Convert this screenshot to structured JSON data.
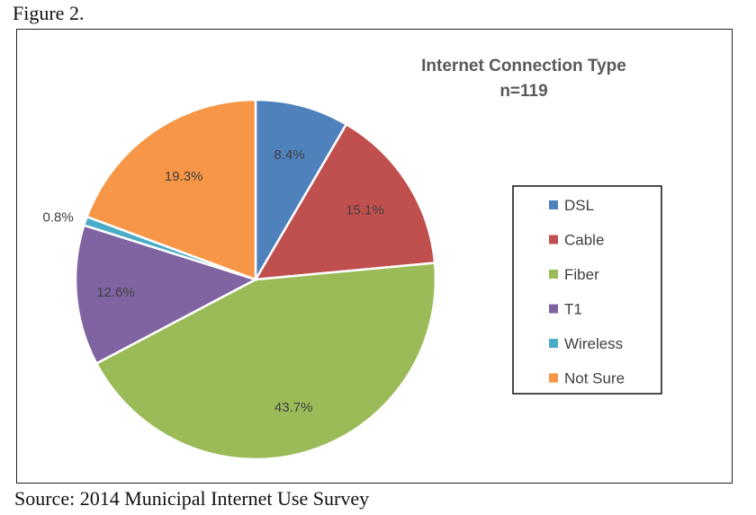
{
  "figure_label": "Figure 2.",
  "source": "Source: 2014 Municipal Internet Use Survey",
  "chart_data": {
    "type": "pie",
    "title": "Internet Connection Type",
    "subtitle": "n=119",
    "legend_position": "right",
    "slices": [
      {
        "category": "DSL",
        "value": 8.4,
        "label": "8.4%",
        "color": "#4F81BD"
      },
      {
        "category": "Cable",
        "value": 15.1,
        "label": "15.1%",
        "color": "#C0504D"
      },
      {
        "category": "Fiber",
        "value": 43.7,
        "label": "43.7%",
        "color": "#9BBB59"
      },
      {
        "category": "T1",
        "value": 12.6,
        "label": "12.6%",
        "color": "#8064A2"
      },
      {
        "category": "Wireless",
        "value": 0.8,
        "label": "0.8%",
        "color": "#4BACC6"
      },
      {
        "category": "Not Sure",
        "value": 19.3,
        "label": "19.3%",
        "color": "#F79646"
      }
    ]
  }
}
